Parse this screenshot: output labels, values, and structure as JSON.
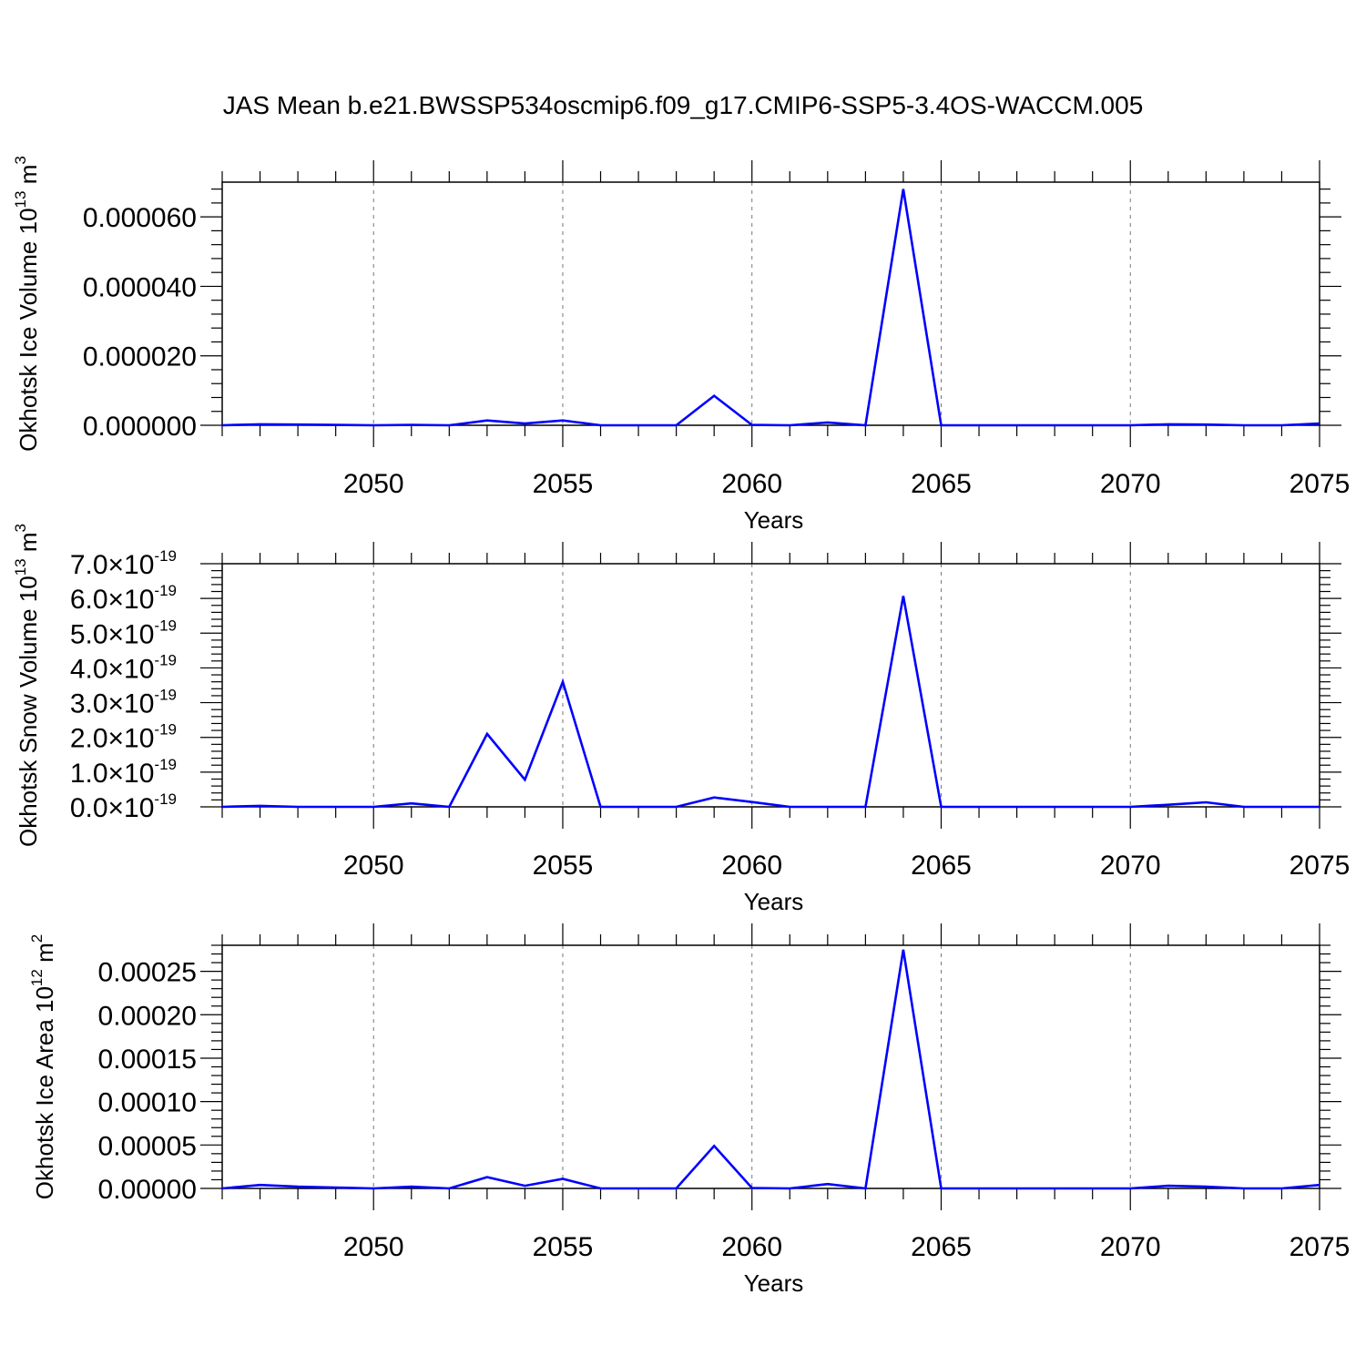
{
  "figure": {
    "title": "JAS Mean b.e21.BWSSP534oscmip6.f09_g17.CMIP6-SSP5-3.4OS-WACCM.005"
  },
  "chart_data": [
    {
      "type": "line",
      "ylabel": "Okhotsk Ice Volume 10^13 m^3",
      "ylabel_parts": {
        "base": "Okhotsk Ice Volume 10",
        "exp": "13",
        "unit": " m",
        "unit_exp": "3"
      },
      "xlabel": "Years",
      "xlim": [
        2046,
        2075
      ],
      "ylim": [
        0,
        7e-05
      ],
      "x_ticks": [
        2050,
        2055,
        2060,
        2065,
        2070,
        2075
      ],
      "y_ticks": [
        0,
        2e-05,
        4e-05,
        6e-05
      ],
      "y_tick_labels": [
        "0.000000",
        "0.000020",
        "0.000040",
        "0.000060"
      ],
      "grid": "vertical-dashed",
      "color": "#0000ff",
      "series": [
        {
          "x": [
            2046,
            2047,
            2048,
            2049,
            2050,
            2051,
            2052,
            2053,
            2054,
            2055,
            2056,
            2057,
            2058,
            2059,
            2060,
            2061,
            2062,
            2063,
            2064,
            2065,
            2066,
            2067,
            2068,
            2069,
            2070,
            2071,
            2072,
            2073,
            2074,
            2075
          ],
          "values": [
            0,
            3e-07,
            2e-07,
            1e-07,
            0,
            1e-07,
            0,
            1.4e-06,
            5e-07,
            1.4e-06,
            0,
            0,
            0,
            8.5e-06,
            1e-07,
            0,
            8e-07,
            0,
            6.8e-05,
            0,
            0,
            0,
            0,
            0,
            0,
            3e-07,
            2e-07,
            0,
            0,
            5e-07
          ]
        }
      ]
    },
    {
      "type": "line",
      "ylabel": "Okhotsk Snow Volume 10^13 m^3",
      "ylabel_parts": {
        "base": "Okhotsk Snow Volume 10",
        "exp": "13",
        "unit": " m",
        "unit_exp": "3"
      },
      "xlabel": "Years",
      "xlim": [
        2046,
        2075
      ],
      "ylim": [
        0,
        7e-19
      ],
      "x_ticks": [
        2050,
        2055,
        2060,
        2065,
        2070,
        2075
      ],
      "y_ticks": [
        0,
        1e-19,
        2e-19,
        3e-19,
        4e-19,
        5e-19,
        6e-19,
        7e-19
      ],
      "y_tick_labels": [
        "0.0",
        "1.0",
        "2.0",
        "3.0",
        "4.0",
        "5.0",
        "6.0",
        "7.0"
      ],
      "y_tick_suffix": {
        "times": "×10",
        "exp": "-19"
      },
      "grid": "vertical-dashed",
      "color": "#0000ff",
      "series": [
        {
          "x": [
            2046,
            2047,
            2048,
            2049,
            2050,
            2051,
            2052,
            2053,
            2054,
            2055,
            2056,
            2057,
            2058,
            2059,
            2060,
            2061,
            2062,
            2063,
            2064,
            2065,
            2066,
            2067,
            2068,
            2069,
            2070,
            2071,
            2072,
            2073,
            2074,
            2075
          ],
          "values": [
            0,
            3e-21,
            0,
            0,
            0,
            1e-20,
            0,
            2.1e-19,
            7.8e-20,
            3.6e-19,
            0,
            0,
            0,
            2.7e-20,
            1.4e-20,
            0,
            0,
            0,
            6.07e-19,
            0,
            0,
            0,
            0,
            0,
            0,
            6e-21,
            1.3e-20,
            0,
            0,
            0
          ]
        }
      ]
    },
    {
      "type": "line",
      "ylabel": "Okhotsk Ice Area 10^12 m^2",
      "ylabel_parts": {
        "base": "Okhotsk Ice Area 10",
        "exp": "12",
        "unit": " m",
        "unit_exp": "2"
      },
      "xlabel": "Years",
      "xlim": [
        2046,
        2075
      ],
      "ylim": [
        0,
        0.00028
      ],
      "x_ticks": [
        2050,
        2055,
        2060,
        2065,
        2070,
        2075
      ],
      "y_ticks": [
        0,
        5e-05,
        0.0001,
        0.00015,
        0.0002,
        0.00025
      ],
      "y_tick_labels": [
        "0.00000",
        "0.00005",
        "0.00010",
        "0.00015",
        "0.00020",
        "0.00025"
      ],
      "grid": "vertical-dashed",
      "color": "#0000ff",
      "series": [
        {
          "x": [
            2046,
            2047,
            2048,
            2049,
            2050,
            2051,
            2052,
            2053,
            2054,
            2055,
            2056,
            2057,
            2058,
            2059,
            2060,
            2061,
            2062,
            2063,
            2064,
            2065,
            2066,
            2067,
            2068,
            2069,
            2070,
            2071,
            2072,
            2073,
            2074,
            2075
          ],
          "values": [
            0,
            4e-06,
            2e-06,
            1e-06,
            0,
            2e-06,
            0,
            1.3e-05,
            3e-06,
            1.1e-05,
            0,
            0,
            0,
            4.9e-05,
            5e-07,
            0,
            5e-06,
            0,
            0.000275,
            0,
            0,
            0,
            0,
            0,
            0,
            3e-06,
            2e-06,
            0,
            0,
            4e-06
          ]
        }
      ]
    }
  ]
}
